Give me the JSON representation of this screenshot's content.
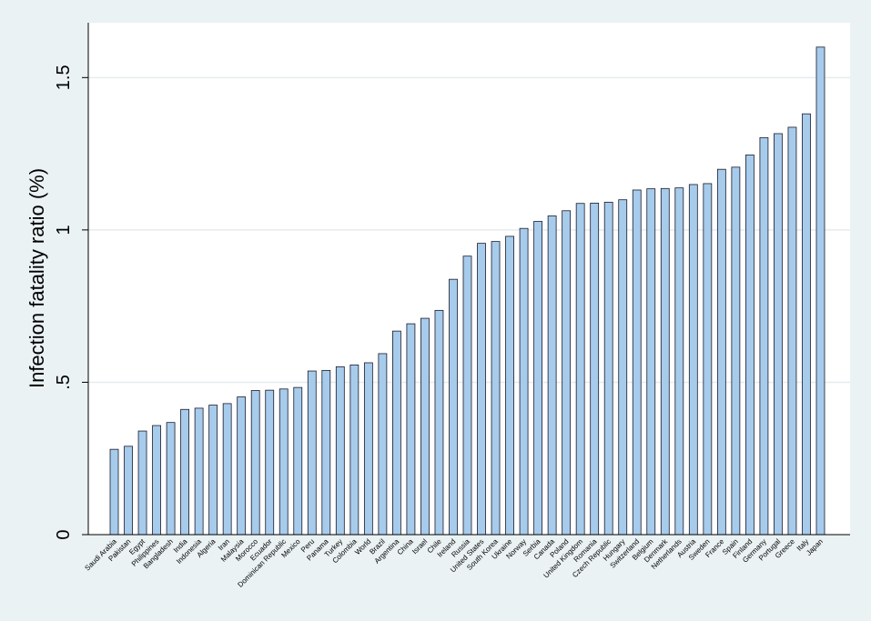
{
  "chart_data": {
    "type": "bar",
    "title": "",
    "xlabel": "",
    "ylabel": "Infection fatality ratio (%)",
    "ylim": [
      0,
      1.68
    ],
    "yticks": [
      {
        "value": 0,
        "label": "0"
      },
      {
        "value": 0.5,
        "label": ".5"
      },
      {
        "value": 1,
        "label": "1"
      },
      {
        "value": 1.5,
        "label": "1.5"
      }
    ],
    "grid": true,
    "legend": "none",
    "categories": [
      "Saudi Arabia",
      "Pakistan",
      "Egypt",
      "Philippines",
      "Bangladesh",
      "India",
      "Indonesia",
      "Algeria",
      "Iran",
      "Malaysia",
      "Morocco",
      "Ecuador",
      "Dominican Republic",
      "Mexico",
      "Peru",
      "Panama",
      "Turkey",
      "Colombia",
      "World",
      "Brazil",
      "Argentina",
      "China",
      "Israel",
      "Chile",
      "Ireland",
      "Russia",
      "United States",
      "South Korea",
      "Ukraine",
      "Norway",
      "Serbia",
      "Canada",
      "Poland",
      "United Kingdom",
      "Romania",
      "Czech Republic",
      "Hungary",
      "Switzerland",
      "Belgium",
      "Denmark",
      "Netherlands",
      "Austria",
      "Sweden",
      "France",
      "Spain",
      "Finland",
      "Germany",
      "Portugal",
      "Greece",
      "Italy",
      "Japan"
    ],
    "values": [
      0.28,
      0.29,
      0.34,
      0.358,
      0.368,
      0.411,
      0.415,
      0.425,
      0.43,
      0.452,
      0.473,
      0.474,
      0.478,
      0.483,
      0.537,
      0.539,
      0.551,
      0.557,
      0.564,
      0.594,
      0.668,
      0.692,
      0.71,
      0.736,
      0.838,
      0.914,
      0.956,
      0.962,
      0.979,
      1.005,
      1.028,
      1.046,
      1.063,
      1.087,
      1.088,
      1.091,
      1.099,
      1.131,
      1.135,
      1.136,
      1.138,
      1.149,
      1.152,
      1.199,
      1.206,
      1.246,
      1.303,
      1.316,
      1.337,
      1.381,
      1.6
    ],
    "colors": {
      "background": "#eaf2f3",
      "plot_area": "#ffffff",
      "bar_fill": "#a7cbeb",
      "bar_stroke": "#1a1a2a",
      "grid": "#e4ecee",
      "axis": "#000000"
    }
  }
}
